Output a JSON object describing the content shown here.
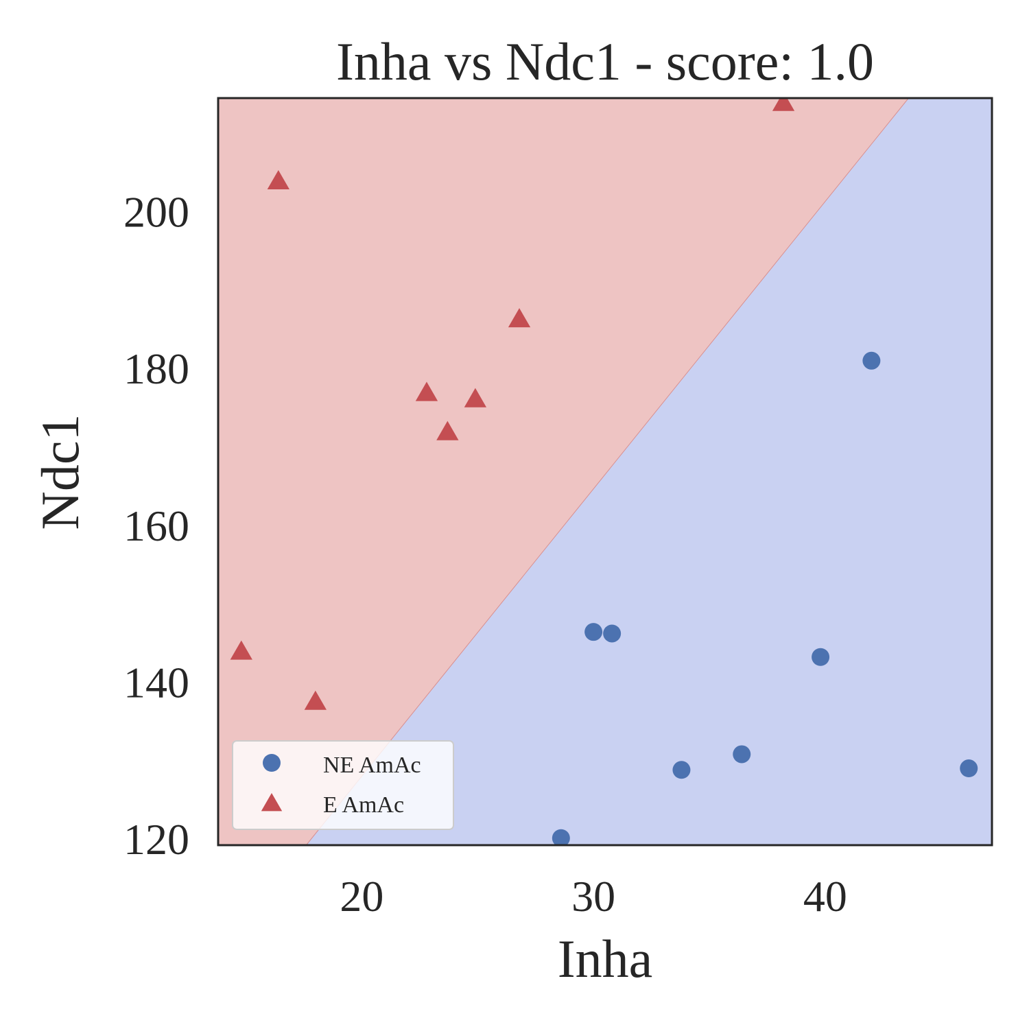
{
  "chart_data": {
    "type": "scatter",
    "title": "Inha vs Ndc1 - score: 1.0",
    "xlabel": "Inha",
    "ylabel": "Ndc1",
    "xlim": [
      13.8,
      47.2
    ],
    "ylim": [
      119.2,
      214.5
    ],
    "x_ticks": [
      20,
      30,
      40
    ],
    "y_ticks": [
      120,
      140,
      160,
      180,
      200
    ],
    "grid": false,
    "legend_position": "lower-left",
    "decision_boundary": {
      "points": [
        [
          17.6,
          119.2
        ],
        [
          43.6,
          214.5
        ]
      ],
      "regions": [
        {
          "class": "E AmAc",
          "side": "upper-left",
          "color": "#eec4c3"
        },
        {
          "class": "NE AmAc",
          "side": "lower-right",
          "color": "#c9d1f2"
        }
      ]
    },
    "series": [
      {
        "name": "NE AmAc",
        "marker": "circle",
        "color": "#4c72b0",
        "points": [
          [
            28.6,
            120.1
          ],
          [
            30.0,
            146.4
          ],
          [
            30.8,
            146.2
          ],
          [
            33.8,
            128.8
          ],
          [
            36.4,
            130.8
          ],
          [
            39.8,
            143.2
          ],
          [
            42.0,
            181.0
          ],
          [
            46.2,
            129.0
          ]
        ]
      },
      {
        "name": "E AmAc",
        "marker": "triangle",
        "color": "#c44e52",
        "points": [
          [
            14.8,
            144.0
          ],
          [
            16.4,
            204.0
          ],
          [
            18.0,
            137.6
          ],
          [
            22.8,
            177.0
          ],
          [
            23.7,
            172.0
          ],
          [
            24.9,
            176.2
          ],
          [
            26.8,
            186.4
          ],
          [
            38.2,
            214.0
          ]
        ]
      }
    ]
  }
}
